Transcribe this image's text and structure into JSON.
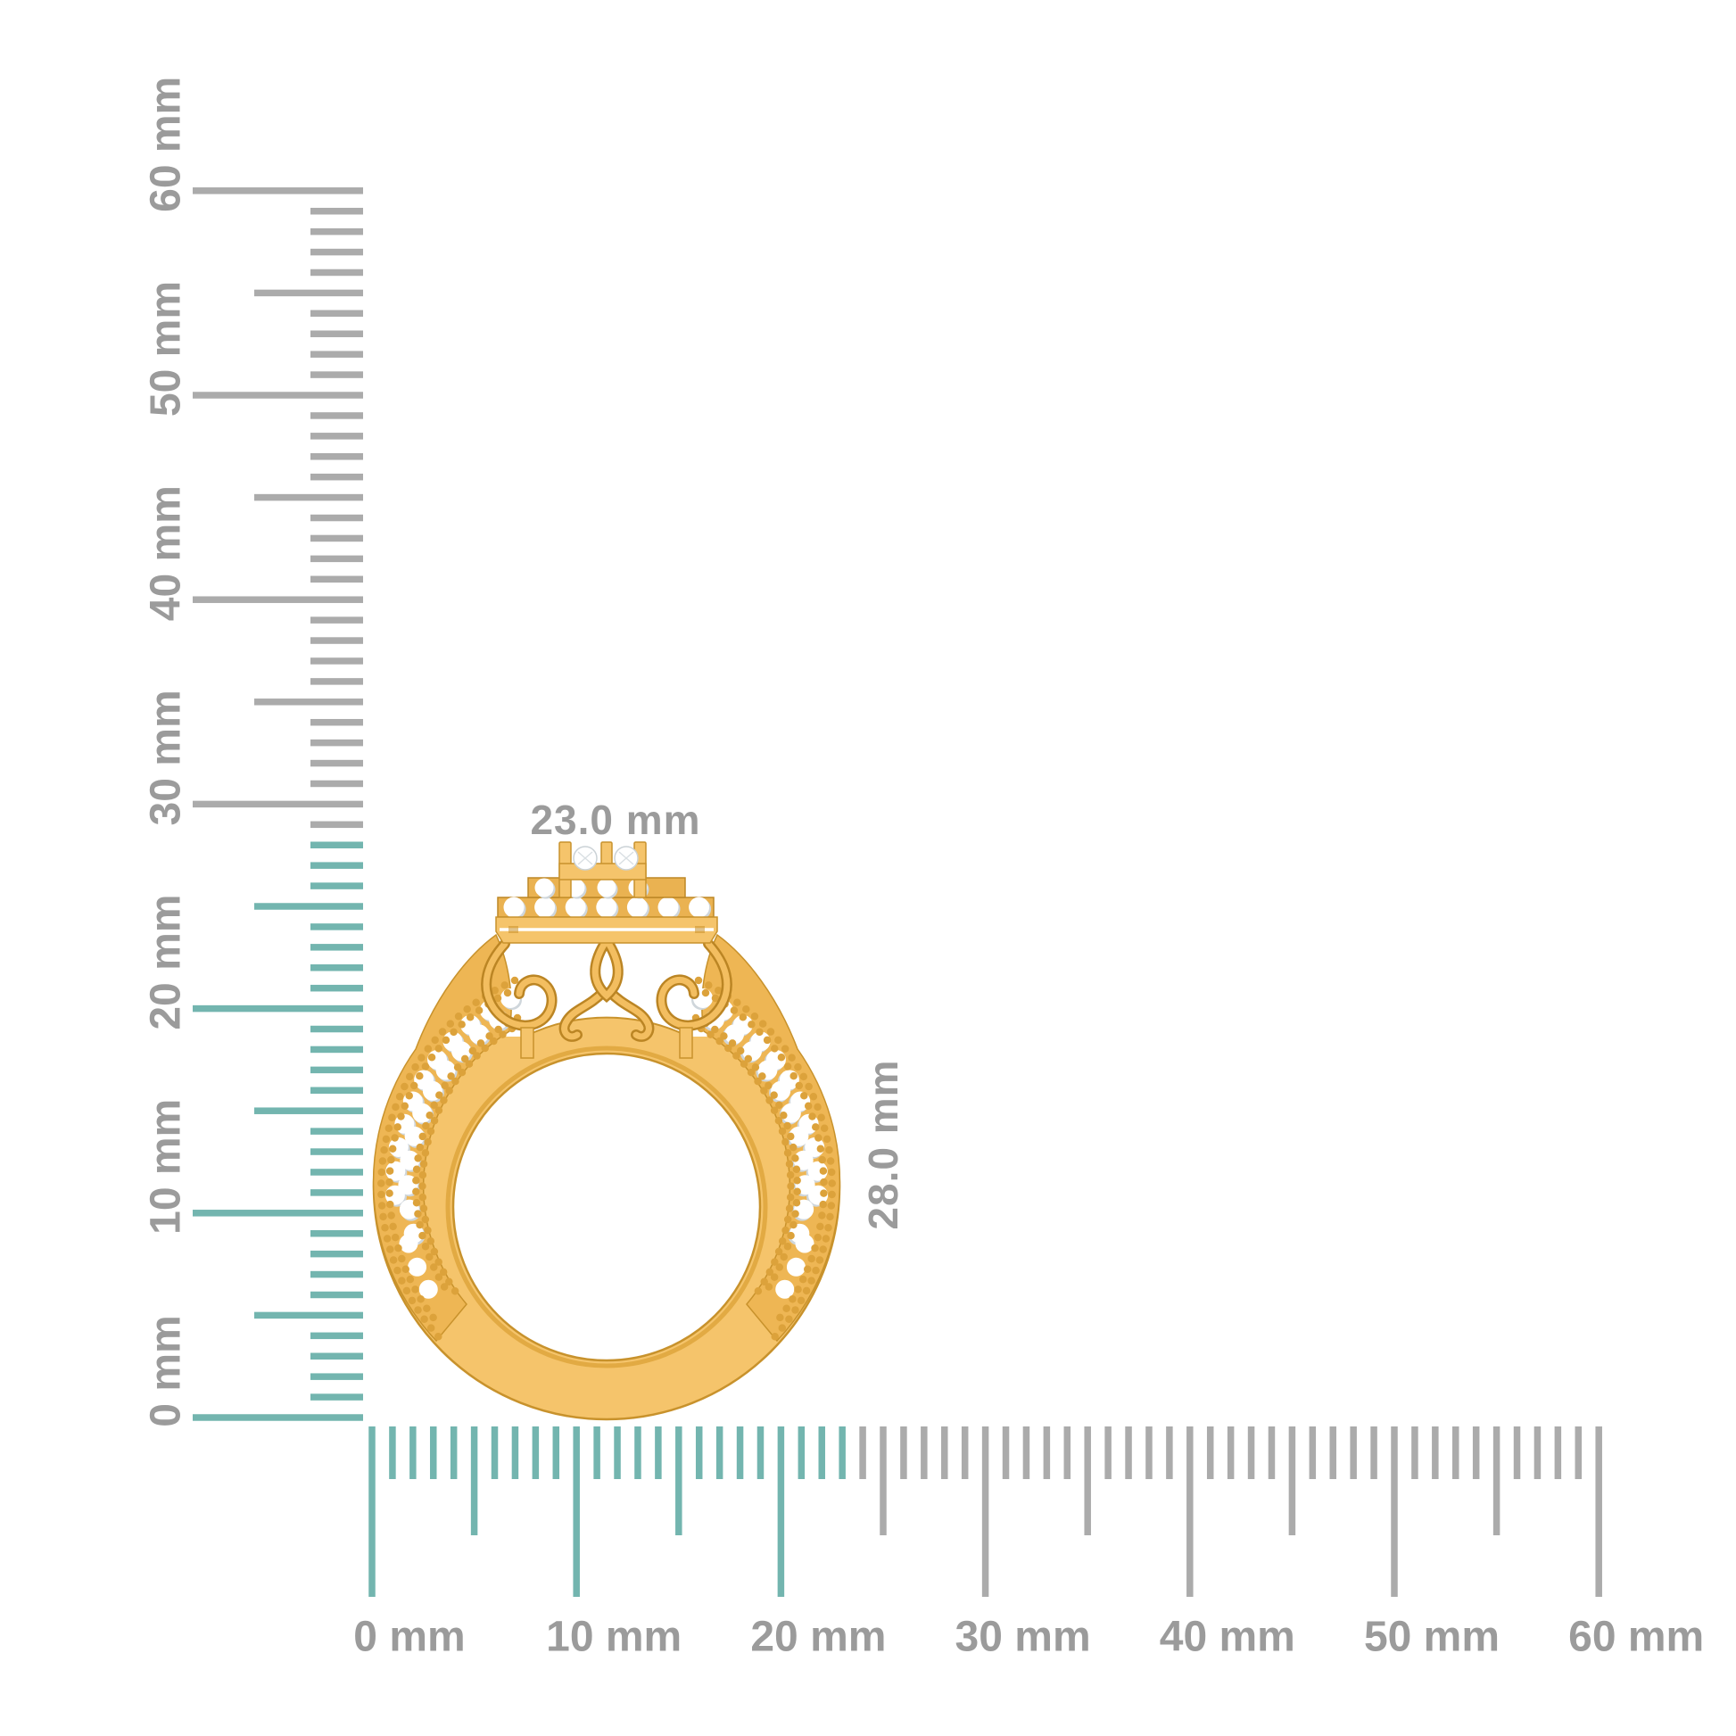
{
  "page": {
    "background": "#ffffff"
  },
  "dimension_labels": {
    "width": "23.0 mm",
    "height": "28.0 mm"
  },
  "rulers": {
    "unit": "mm",
    "vertical": {
      "min_mm": 0,
      "max_mm": 60,
      "label_step_mm": 10,
      "labels": [
        "0 mm",
        "10 mm",
        "20 mm",
        "30 mm",
        "40 mm",
        "50 mm",
        "60 mm"
      ],
      "highlight_mm": [
        0,
        28
      ]
    },
    "horizontal": {
      "min_mm": 0,
      "max_mm": 60,
      "label_step_mm": 10,
      "labels": [
        "0 mm",
        "10 mm",
        "20 mm",
        "30 mm",
        "40 mm",
        "50 mm",
        "60 mm"
      ],
      "highlight_mm": [
        0,
        23
      ]
    },
    "colors": {
      "tick": "#ababab",
      "tick_highlight": "#73b5af",
      "label": "#9b9b9b"
    }
  },
  "ring": {
    "colors": {
      "gold": "#f5c46b",
      "gold_dark": "#c8922c",
      "gold_mid": "#eab251",
      "bead_gold": "#dca23b",
      "diamond": "#ffffff"
    }
  }
}
